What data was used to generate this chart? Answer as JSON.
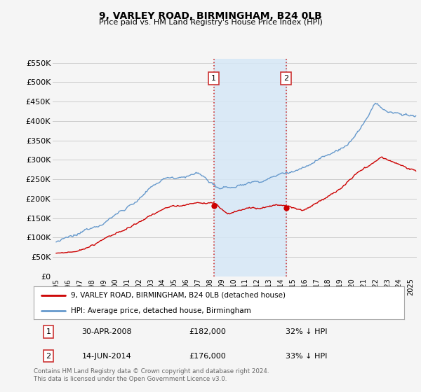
{
  "title": "9, VARLEY ROAD, BIRMINGHAM, B24 0LB",
  "subtitle": "Price paid vs. HM Land Registry's House Price Index (HPI)",
  "ylabel_ticks": [
    "£0",
    "£50K",
    "£100K",
    "£150K",
    "£200K",
    "£250K",
    "£300K",
    "£350K",
    "£400K",
    "£450K",
    "£500K",
    "£550K"
  ],
  "ylim": [
    0,
    560000
  ],
  "ytick_vals": [
    0,
    50000,
    100000,
    150000,
    200000,
    250000,
    300000,
    350000,
    400000,
    450000,
    500000,
    550000
  ],
  "xlim_start": 1994.7,
  "xlim_end": 2025.5,
  "sale1_x": 2008.33,
  "sale1_y": 182000,
  "sale2_x": 2014.45,
  "sale2_y": 176000,
  "shade_color": "#d6e8f7",
  "vline_color": "#cc3333",
  "red_line_color": "#cc0000",
  "blue_line_color": "#6699cc",
  "background_color": "#f5f5f5",
  "grid_color": "#cccccc",
  "legend_label_red": "9, VARLEY ROAD, BIRMINGHAM, B24 0LB (detached house)",
  "legend_label_blue": "HPI: Average price, detached house, Birmingham",
  "table_row1": [
    "1",
    "30-APR-2008",
    "£182,000",
    "32% ↓ HPI"
  ],
  "table_row2": [
    "2",
    "14-JUN-2014",
    "£176,000",
    "33% ↓ HPI"
  ],
  "footer": "Contains HM Land Registry data © Crown copyright and database right 2024.\nThis data is licensed under the Open Government Licence v3.0.",
  "xtick_years": [
    1995,
    1996,
    1997,
    1998,
    1999,
    2000,
    2001,
    2002,
    2003,
    2004,
    2005,
    2006,
    2007,
    2008,
    2009,
    2010,
    2011,
    2012,
    2013,
    2014,
    2015,
    2016,
    2017,
    2018,
    2019,
    2020,
    2021,
    2022,
    2023,
    2024,
    2025
  ]
}
